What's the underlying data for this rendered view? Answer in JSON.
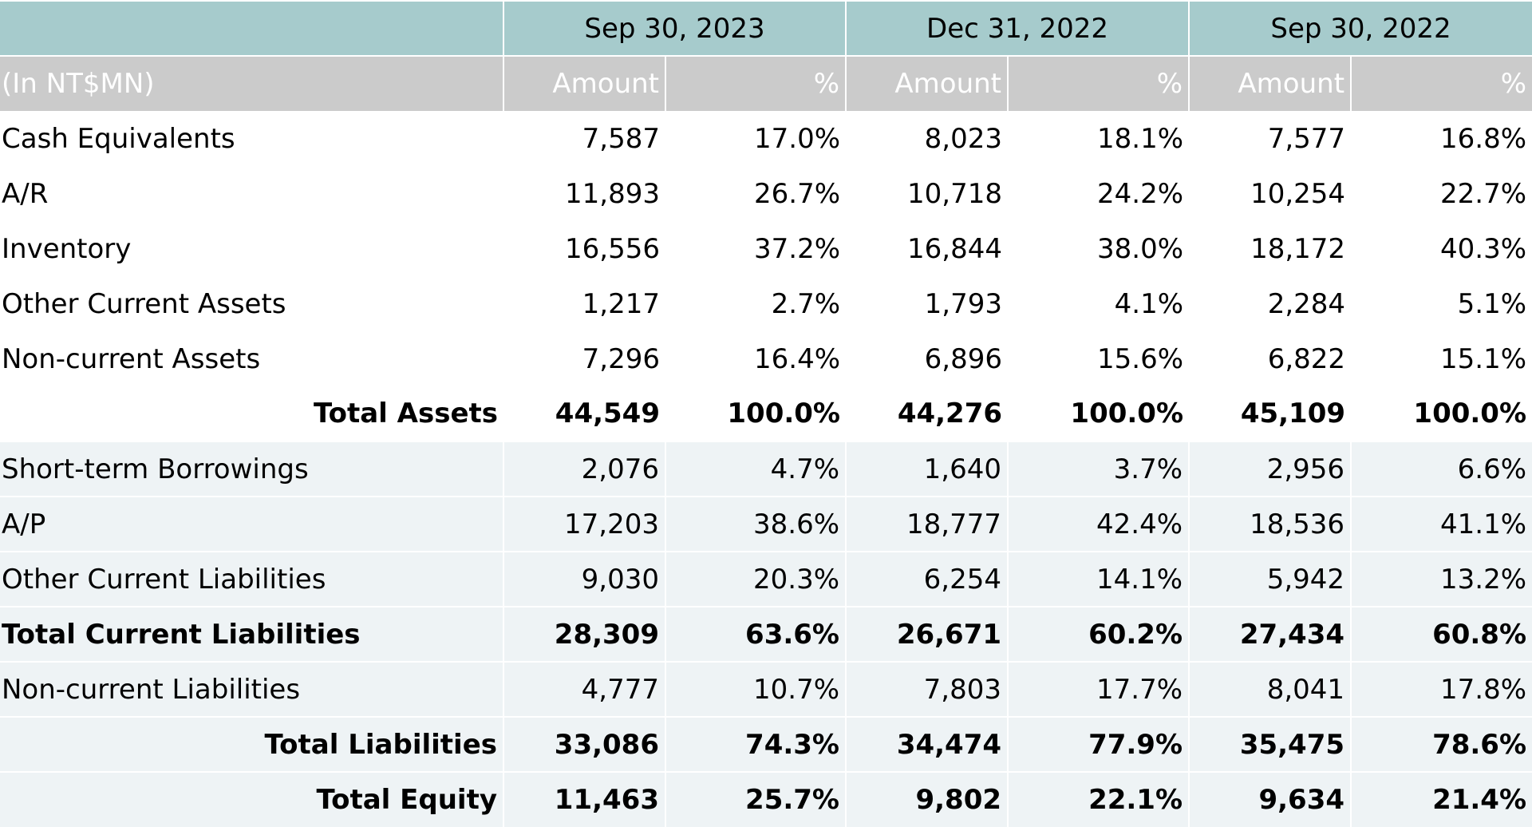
{
  "table": {
    "periods": [
      "Sep 30, 2023",
      "Dec 31, 2022",
      "Sep 30, 2022"
    ],
    "units_label": "(In NT$MN)",
    "amount_header": "Amount",
    "percent_header": "%",
    "rows": [
      {
        "label": "Cash Equivalents",
        "values": [
          "7,587",
          "17.0%",
          "8,023",
          "18.1%",
          "7,577",
          "16.8%"
        ]
      },
      {
        "label": "A/R",
        "values": [
          "11,893",
          "26.7%",
          "10,718",
          "24.2%",
          "10,254",
          "22.7%"
        ]
      },
      {
        "label": "Inventory",
        "values": [
          "16,556",
          "37.2%",
          "16,844",
          "38.0%",
          "18,172",
          "40.3%"
        ]
      },
      {
        "label": "Other Current Assets",
        "values": [
          "1,217",
          "2.7%",
          "1,793",
          "4.1%",
          "2,284",
          "5.1%"
        ]
      },
      {
        "label": "Non-current Assets",
        "values": [
          "7,296",
          "16.4%",
          "6,896",
          "15.6%",
          "6,822",
          "15.1%"
        ]
      },
      {
        "label": "Total Assets",
        "values": [
          "44,549",
          "100.0%",
          "44,276",
          "100.0%",
          "45,109",
          "100.0%"
        ]
      },
      {
        "label": "Short-term Borrowings",
        "values": [
          "2,076",
          "4.7%",
          "1,640",
          "3.7%",
          "2,956",
          "6.6%"
        ]
      },
      {
        "label": "A/P",
        "values": [
          "17,203",
          "38.6%",
          "18,777",
          "42.4%",
          "18,536",
          "41.1%"
        ]
      },
      {
        "label": "Other Current Liabilities",
        "values": [
          "9,030",
          "20.3%",
          "6,254",
          "14.1%",
          "5,942",
          "13.2%"
        ]
      },
      {
        "label": "Total Current Liabilities",
        "values": [
          "28,309",
          "63.6%",
          "26,671",
          "60.2%",
          "27,434",
          "60.8%"
        ]
      },
      {
        "label": "Non-current Liabilities",
        "values": [
          "4,777",
          "10.7%",
          "7,803",
          "17.7%",
          "8,041",
          "17.8%"
        ]
      },
      {
        "label": "Total Liabilities",
        "values": [
          "33,086",
          "74.3%",
          "34,474",
          "77.9%",
          "35,475",
          "78.6%"
        ]
      },
      {
        "label": "Total Equity",
        "values": [
          "11,463",
          "25.7%",
          "9,802",
          "22.1%",
          "9,634",
          "21.4%"
        ]
      }
    ]
  },
  "colors": {
    "period_header_bg": "#a6cbcc",
    "units_header_bg": "#cbcbcb",
    "liabilities_band_bg": "#eef3f5"
  }
}
